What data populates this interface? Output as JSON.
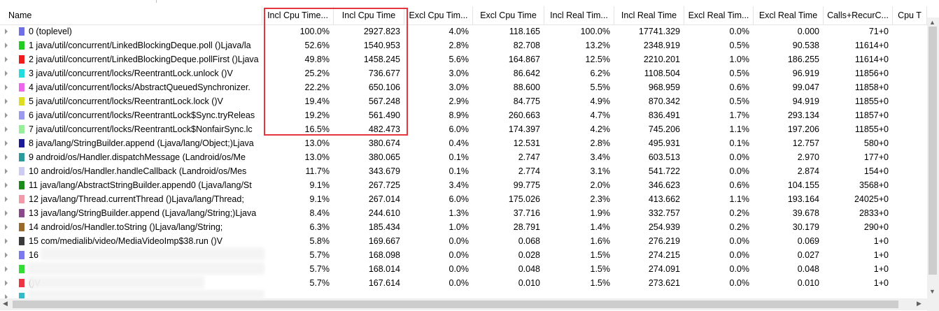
{
  "columns": [
    "Name",
    "Incl Cpu Time...",
    "Incl Cpu Time",
    "Excl Cpu Tim...",
    "Excl Cpu Time",
    "Incl Real Tim...",
    "Incl Real Time",
    "Excl Real Tim...",
    "Excl Real Time",
    "Calls+RecurC...",
    "Cpu T"
  ],
  "rows": [
    {
      "color": "#6f6fe8",
      "name": "0 (toplevel)",
      "v": [
        "100.0%",
        "2927.823",
        "4.0%",
        "118.165",
        "100.0%",
        "17741.329",
        "0.0%",
        "0.000",
        "71+0"
      ]
    },
    {
      "color": "#22cc22",
      "name": "1 java/util/concurrent/LinkedBlockingDeque.poll ()Ljava/la",
      "v": [
        "52.6%",
        "1540.953",
        "2.8%",
        "82.708",
        "13.2%",
        "2348.919",
        "0.5%",
        "90.538",
        "11614+0"
      ]
    },
    {
      "color": "#ee1c1c",
      "name": "2 java/util/concurrent/LinkedBlockingDeque.pollFirst ()Ljava",
      "v": [
        "49.8%",
        "1458.245",
        "5.6%",
        "164.867",
        "12.5%",
        "2210.201",
        "1.0%",
        "186.255",
        "11614+0"
      ]
    },
    {
      "color": "#22dddd",
      "name": "3 java/util/concurrent/locks/ReentrantLock.unlock ()V",
      "v": [
        "25.2%",
        "736.677",
        "3.0%",
        "86.642",
        "6.2%",
        "1108.504",
        "0.5%",
        "96.919",
        "11856+0"
      ]
    },
    {
      "color": "#ee66ee",
      "name": "4 java/util/concurrent/locks/AbstractQueuedSynchronizer.",
      "v": [
        "22.2%",
        "650.106",
        "3.0%",
        "88.600",
        "5.5%",
        "968.959",
        "0.6%",
        "99.047",
        "11858+0"
      ]
    },
    {
      "color": "#dddd22",
      "name": "5 java/util/concurrent/locks/ReentrantLock.lock ()V",
      "v": [
        "19.4%",
        "567.248",
        "2.9%",
        "84.775",
        "4.9%",
        "870.342",
        "0.5%",
        "94.919",
        "11855+0"
      ]
    },
    {
      "color": "#9a9aee",
      "name": "6 java/util/concurrent/locks/ReentrantLock$Sync.tryReleas",
      "v": [
        "19.2%",
        "561.490",
        "8.9%",
        "260.663",
        "4.7%",
        "836.491",
        "1.7%",
        "293.134",
        "11857+0"
      ]
    },
    {
      "color": "#99ee99",
      "name": "7 java/util/concurrent/locks/ReentrantLock$NonfairSync.lc",
      "v": [
        "16.5%",
        "482.473",
        "6.0%",
        "174.397",
        "4.2%",
        "745.206",
        "1.1%",
        "197.206",
        "11855+0"
      ]
    },
    {
      "color": "#1a1a9a",
      "name": "8 java/lang/StringBuilder.append (Ljava/lang/Object;)Ljava",
      "v": [
        "13.0%",
        "380.674",
        "0.4%",
        "12.531",
        "2.8%",
        "495.931",
        "0.1%",
        "12.757",
        "580+0"
      ]
    },
    {
      "color": "#2a9a9a",
      "name": "9 android/os/Handler.dispatchMessage (Landroid/os/Me",
      "v": [
        "13.0%",
        "380.065",
        "0.1%",
        "2.747",
        "3.4%",
        "603.513",
        "0.0%",
        "2.970",
        "177+0"
      ]
    },
    {
      "color": "#ccccf2",
      "name": "10 android/os/Handler.handleCallback (Landroid/os/Mes",
      "v": [
        "11.7%",
        "343.679",
        "0.1%",
        "2.774",
        "3.1%",
        "541.722",
        "0.0%",
        "2.874",
        "154+0"
      ]
    },
    {
      "color": "#1a8a1a",
      "name": "11 java/lang/AbstractStringBuilder.append0 (Ljava/lang/St",
      "v": [
        "9.1%",
        "267.725",
        "3.4%",
        "99.775",
        "2.0%",
        "346.623",
        "0.6%",
        "104.155",
        "3568+0"
      ]
    },
    {
      "color": "#f29aa8",
      "name": "12 java/lang/Thread.currentThread ()Ljava/lang/Thread;",
      "v": [
        "9.1%",
        "267.014",
        "6.0%",
        "175.026",
        "2.3%",
        "413.662",
        "1.1%",
        "193.164",
        "24025+0"
      ]
    },
    {
      "color": "#8a4a8a",
      "name": "13 java/lang/StringBuilder.append (Ljava/lang/String;)Ljava",
      "v": [
        "8.4%",
        "244.610",
        "1.3%",
        "37.716",
        "1.9%",
        "332.757",
        "0.2%",
        "39.678",
        "2833+0"
      ]
    },
    {
      "color": "#9a6a2a",
      "name": "14 android/os/Handler.toString ()Ljava/lang/String;",
      "v": [
        "6.3%",
        "185.434",
        "1.0%",
        "28.791",
        "1.4%",
        "254.939",
        "0.2%",
        "30.179",
        "290+0"
      ]
    },
    {
      "color": "#3a3a3a",
      "name": "15 com/medialib/video/MediaVideoImp$38.run ()V",
      "v": [
        "5.8%",
        "169.667",
        "0.0%",
        "0.068",
        "1.6%",
        "276.219",
        "0.0%",
        "0.069",
        "1+0"
      ]
    },
    {
      "color": "#7a7aee",
      "name": "16",
      "v": [
        "5.7%",
        "168.098",
        "0.0%",
        "0.028",
        "1.5%",
        "274.215",
        "0.0%",
        "0.027",
        "1+0"
      ]
    },
    {
      "color": "#33dd33",
      "name": "",
      "v": [
        "5.7%",
        "168.014",
        "0.0%",
        "0.048",
        "1.5%",
        "274.091",
        "0.0%",
        "0.048",
        "1+0"
      ]
    },
    {
      "color": "#ee3344",
      "name": "()V",
      "v": [
        "5.7%",
        "167.614",
        "0.0%",
        "0.010",
        "1.5%",
        "273.621",
        "0.0%",
        "0.010",
        "1+0"
      ]
    },
    {
      "color": "#33bbcc",
      "name": "",
      "v": [
        "",
        "",
        "",
        "",
        "",
        "",
        "",
        "",
        ""
      ]
    }
  ],
  "icons": {
    "row_expand": "chevron-right-icon",
    "scroll_up": "arrow-up-icon",
    "scroll_down": "arrow-down-icon",
    "scroll_left": "arrow-left-icon",
    "scroll_right": "arrow-right-icon"
  },
  "highlight_color": "#e5363d"
}
